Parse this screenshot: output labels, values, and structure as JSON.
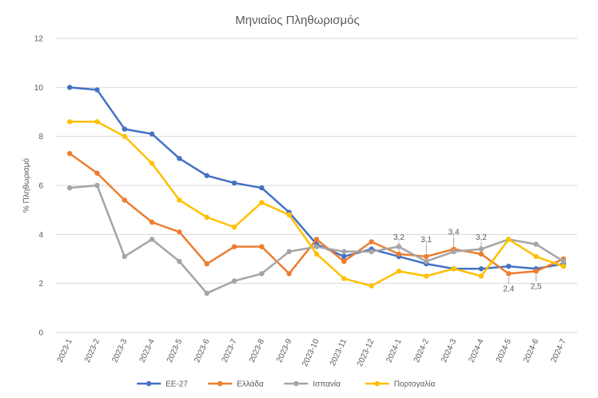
{
  "chart_data": {
    "type": "line",
    "title": "Μηνιαίος Πληθωρισμός",
    "ylabel": "% Πληθωρισμό",
    "xlabel": "",
    "ylim": [
      0,
      12
    ],
    "yticks": [
      0,
      2,
      4,
      6,
      8,
      10,
      12
    ],
    "grid": true,
    "legend_position": "bottom",
    "categories": [
      "2023-1",
      "2023-2",
      "2023-3",
      "2023-4",
      "2023-5",
      "2023-6",
      "2023-7",
      "2023-8",
      "2023-9",
      "2023-10",
      "2023-11",
      "2023-12",
      "2024-1",
      "2024-2",
      "2024-3",
      "2024-4",
      "2024-5",
      "2024-6",
      "2024-7"
    ],
    "series": [
      {
        "name": "ΕΕ-27",
        "color": "#4472c4",
        "values": [
          10.0,
          9.9,
          8.3,
          8.1,
          7.1,
          6.4,
          6.1,
          5.9,
          4.9,
          3.6,
          3.1,
          3.4,
          3.1,
          2.8,
          2.6,
          2.6,
          2.7,
          2.6,
          2.8
        ]
      },
      {
        "name": "Ελλάδα",
        "color": "#ed7d31",
        "values": [
          7.3,
          6.5,
          5.4,
          4.5,
          4.1,
          2.8,
          3.5,
          3.5,
          2.4,
          3.8,
          2.9,
          3.7,
          3.2,
          3.1,
          3.4,
          3.2,
          2.4,
          2.5,
          3.0
        ]
      },
      {
        "name": "Ισπανία",
        "color": "#a5a5a5",
        "values": [
          5.9,
          6.0,
          3.1,
          3.8,
          2.9,
          1.6,
          2.1,
          2.4,
          3.3,
          3.5,
          3.3,
          3.3,
          3.5,
          2.9,
          3.3,
          3.4,
          3.8,
          3.6,
          2.9
        ]
      },
      {
        "name": "Πορτογαλία",
        "color": "#ffc000",
        "values": [
          8.6,
          8.6,
          8.0,
          6.9,
          5.4,
          4.7,
          4.3,
          5.3,
          4.8,
          3.2,
          2.2,
          1.9,
          2.5,
          2.3,
          2.6,
          2.3,
          3.8,
          3.1,
          2.7
        ]
      }
    ],
    "annotations": [
      {
        "text": "3,2",
        "category": "2024-1",
        "value": 3.2,
        "series": "Ελλάδα",
        "side": "above"
      },
      {
        "text": "3,1",
        "category": "2024-2",
        "value": 3.1,
        "series": "Ελλάδα",
        "side": "above"
      },
      {
        "text": "3,4",
        "category": "2024-3",
        "value": 3.4,
        "series": "Ελλάδα",
        "side": "above"
      },
      {
        "text": "3,2",
        "category": "2024-4",
        "value": 3.2,
        "series": "Ελλάδα",
        "side": "above"
      },
      {
        "text": "2,4",
        "category": "2024-5",
        "value": 2.4,
        "series": "Ελλάδα",
        "side": "below"
      },
      {
        "text": "2,5",
        "category": "2024-6",
        "value": 2.5,
        "series": "Ελλάδα",
        "side": "below"
      }
    ]
  }
}
